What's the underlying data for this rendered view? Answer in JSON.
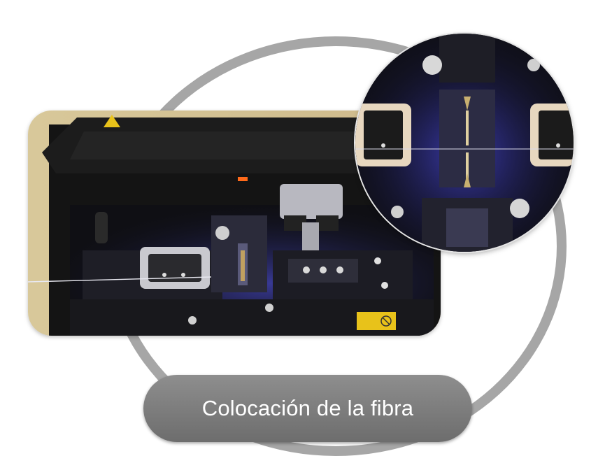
{
  "caption": {
    "text": "Colocación de la fibra"
  },
  "photos": {
    "main_alt": "fiber-splicer-open",
    "zoom_alt": "fiber-alignment-closeup"
  },
  "colors": {
    "ring": "#a6a6a6",
    "caption_bg": "#7a7a7a",
    "caption_text": "#ffffff",
    "accent_blue": "#4a4aff",
    "warning_yellow": "#e8c21a"
  }
}
